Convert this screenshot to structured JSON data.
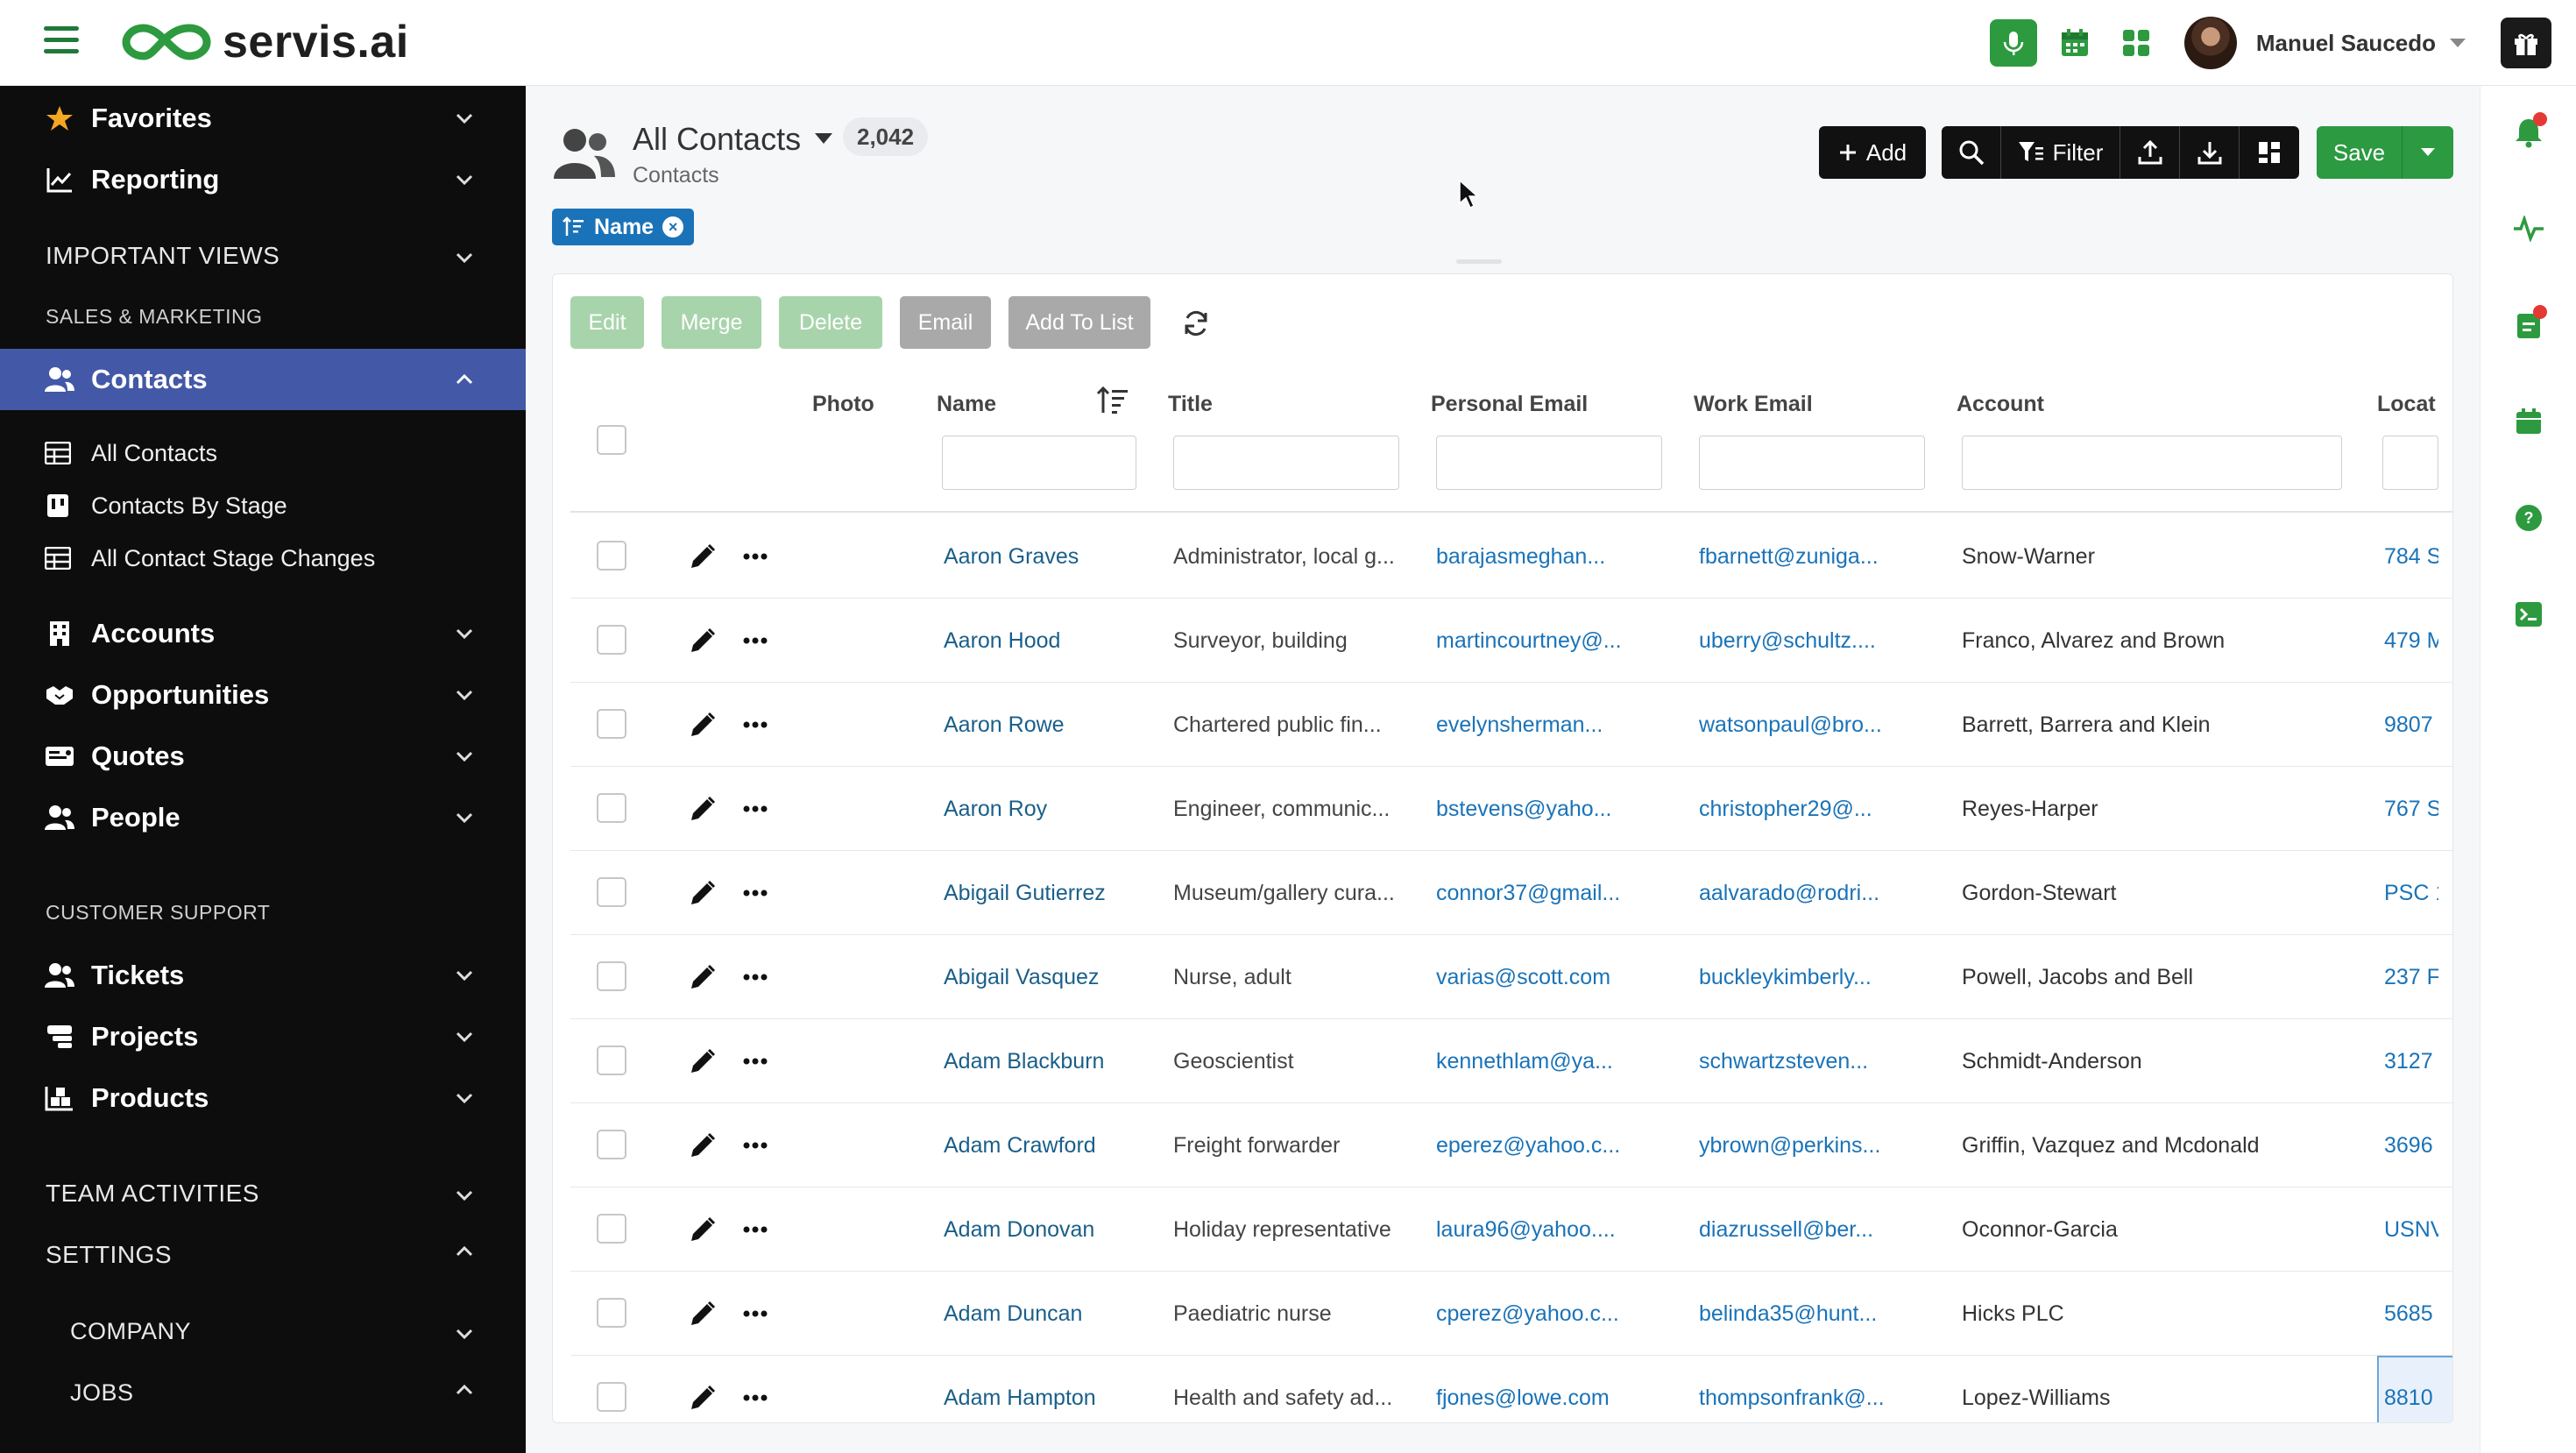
{
  "app": {
    "brand": "servis.ai",
    "brand_color": "#2d9a3f"
  },
  "topbar": {
    "user_name": "Manuel Saucedo",
    "icons": [
      "menu-icon",
      "microphone-icon",
      "calendar-icon",
      "apps-grid-icon",
      "gift-icon"
    ]
  },
  "sidebar": {
    "favorites": "Favorites",
    "reporting": "Reporting",
    "important_views": "IMPORTANT VIEWS",
    "sales_marketing": "SALES & MARKETING",
    "contacts": "Contacts",
    "contacts_children": [
      {
        "label": "All Contacts"
      },
      {
        "label": "Contacts By Stage"
      },
      {
        "label": "All Contact Stage Changes"
      }
    ],
    "accounts": "Accounts",
    "opportunities": "Opportunities",
    "quotes": "Quotes",
    "people": "People",
    "customer_support": "CUSTOMER SUPPORT",
    "tickets": "Tickets",
    "projects": "Projects",
    "products": "Products",
    "team_activities": "TEAM ACTIVITIES",
    "settings": "SETTINGS",
    "company": "COMPANY",
    "jobs": "JOBS",
    "active_color": "#4458a8"
  },
  "view": {
    "title": "All Contacts",
    "count": "2,042",
    "subtitle": "Contacts",
    "sort_chip": "Name"
  },
  "toolbar": {
    "add_label": "Add",
    "filter_label": "Filter",
    "save_label": "Save"
  },
  "actions": {
    "edit": "Edit",
    "merge": "Merge",
    "delete": "Delete",
    "email": "Email",
    "add_to_list": "Add To List"
  },
  "columns": {
    "photo": "Photo",
    "name": "Name",
    "title": "Title",
    "personal_email": "Personal Email",
    "work_email": "Work Email",
    "account": "Account",
    "location": "Locat"
  },
  "rows": [
    {
      "name": "Aaron Graves",
      "title": "Administrator, local g...",
      "personal_email": "barajasmeghan...",
      "work_email": "fbarnett@zuniga...",
      "account": "Snow-Warner",
      "location": "784 S"
    },
    {
      "name": "Aaron Hood",
      "title": "Surveyor, building",
      "personal_email": "martincourtney@...",
      "work_email": "uberry@schultz....",
      "account": "Franco, Alvarez and Brown",
      "location": "479 M"
    },
    {
      "name": "Aaron Rowe",
      "title": "Chartered public fin...",
      "personal_email": "evelynsherman...",
      "work_email": "watsonpaul@bro...",
      "account": "Barrett, Barrera and Klein",
      "location": "9807"
    },
    {
      "name": "Aaron Roy",
      "title": "Engineer, communic...",
      "personal_email": "bstevens@yaho...",
      "work_email": "christopher29@...",
      "account": "Reyes-Harper",
      "location": "767 S"
    },
    {
      "name": "Abigail Gutierrez",
      "title": "Museum/gallery cura...",
      "personal_email": "connor37@gmail...",
      "work_email": "aalvarado@rodri...",
      "account": "Gordon-Stewart",
      "location": "PSC 1"
    },
    {
      "name": "Abigail Vasquez",
      "title": "Nurse, adult",
      "personal_email": "varias@scott.com",
      "work_email": "buckleykimberly...",
      "account": "Powell, Jacobs and Bell",
      "location": "237 F"
    },
    {
      "name": "Adam Blackburn",
      "title": "Geoscientist",
      "personal_email": "kennethlam@ya...",
      "work_email": "schwartzsteven...",
      "account": "Schmidt-Anderson",
      "location": "3127"
    },
    {
      "name": "Adam Crawford",
      "title": "Freight forwarder",
      "personal_email": "eperez@yahoo.c...",
      "work_email": "ybrown@perkins...",
      "account": "Griffin, Vazquez and Mcdonald",
      "location": "3696"
    },
    {
      "name": "Adam Donovan",
      "title": "Holiday representative",
      "personal_email": "laura96@yahoo....",
      "work_email": "diazrussell@ber...",
      "account": "Oconnor-Garcia",
      "location": "USNV"
    },
    {
      "name": "Adam Duncan",
      "title": "Paediatric nurse",
      "personal_email": "cperez@yahoo.c...",
      "work_email": "belinda35@hunt...",
      "account": "Hicks PLC",
      "location": "5685"
    },
    {
      "name": "Adam Hampton",
      "title": "Health and safety ad...",
      "personal_email": "fjones@lowe.com",
      "work_email": "thompsonfrank@...",
      "account": "Lopez-Williams",
      "location": "8810"
    }
  ],
  "rail_icons": [
    "bell-icon",
    "activity-icon",
    "tasks-icon",
    "calendar-icon",
    "help-icon",
    "terminal-icon"
  ]
}
